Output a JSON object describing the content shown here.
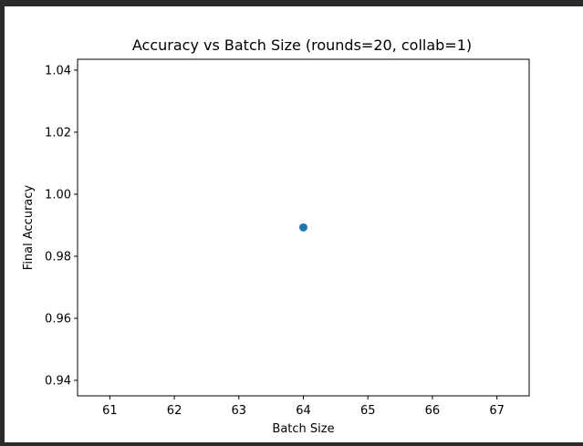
{
  "chart_data": {
    "type": "scatter",
    "title": "Accuracy vs Batch Size (rounds=20, collab=1)",
    "xlabel": "Batch Size",
    "ylabel": "Final Accuracy",
    "xlim": [
      60.5,
      67.5
    ],
    "ylim": [
      0.935,
      1.0435
    ],
    "xticks": [
      61,
      62,
      63,
      64,
      65,
      66,
      67
    ],
    "xtick_labels": [
      "61",
      "62",
      "63",
      "64",
      "65",
      "66",
      "67"
    ],
    "yticks": [
      0.94,
      0.96,
      0.98,
      1.0,
      1.02,
      1.04
    ],
    "ytick_labels": [
      "0.94",
      "0.96",
      "0.98",
      "1.00",
      "1.02",
      "1.04"
    ],
    "grid": false,
    "legend": "none",
    "marker_color": "#1f77b4",
    "series": [
      {
        "x": [
          64
        ],
        "y": [
          0.9893
        ]
      }
    ]
  }
}
